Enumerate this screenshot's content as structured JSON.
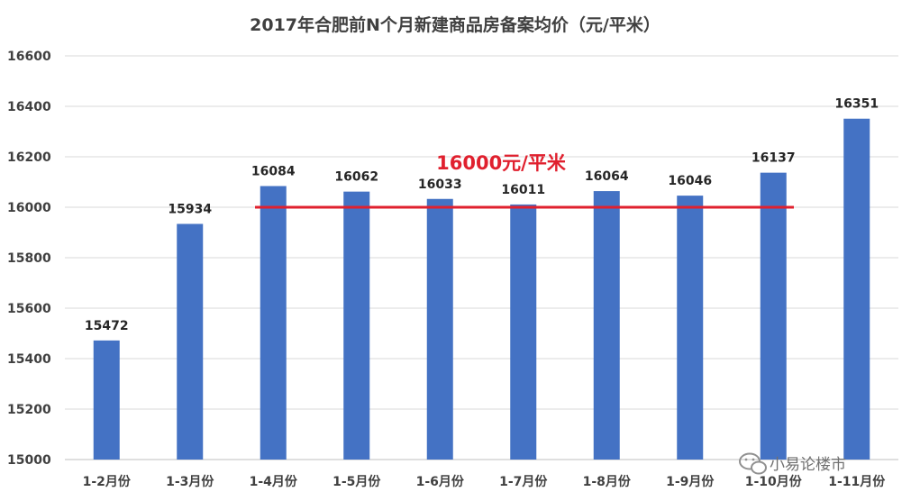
{
  "chart_data": {
    "type": "bar",
    "title": "2017年合肥前N个月新建商品房备案均价（元/平米）",
    "categories": [
      "1-2月份",
      "1-3月份",
      "1-4月份",
      "1-5月份",
      "1-6月份",
      "1-7月份",
      "1-8月份",
      "1-9月份",
      "1-10月份",
      "1-11月份"
    ],
    "values": [
      15472,
      15934,
      16084,
      16062,
      16033,
      16011,
      16064,
      16046,
      16137,
      16351
    ],
    "ylim": [
      15000,
      16600
    ],
    "yticks": [
      15000,
      15200,
      15400,
      15600,
      15800,
      16000,
      16200,
      16400,
      16600
    ],
    "grid": true,
    "bar_color": "#4472C4",
    "reference_line": {
      "value": 16000,
      "label": "16000元/平米",
      "color": "#E0202E"
    }
  },
  "watermark": {
    "text": "小易论楼市",
    "icon": "wechat-icon"
  }
}
